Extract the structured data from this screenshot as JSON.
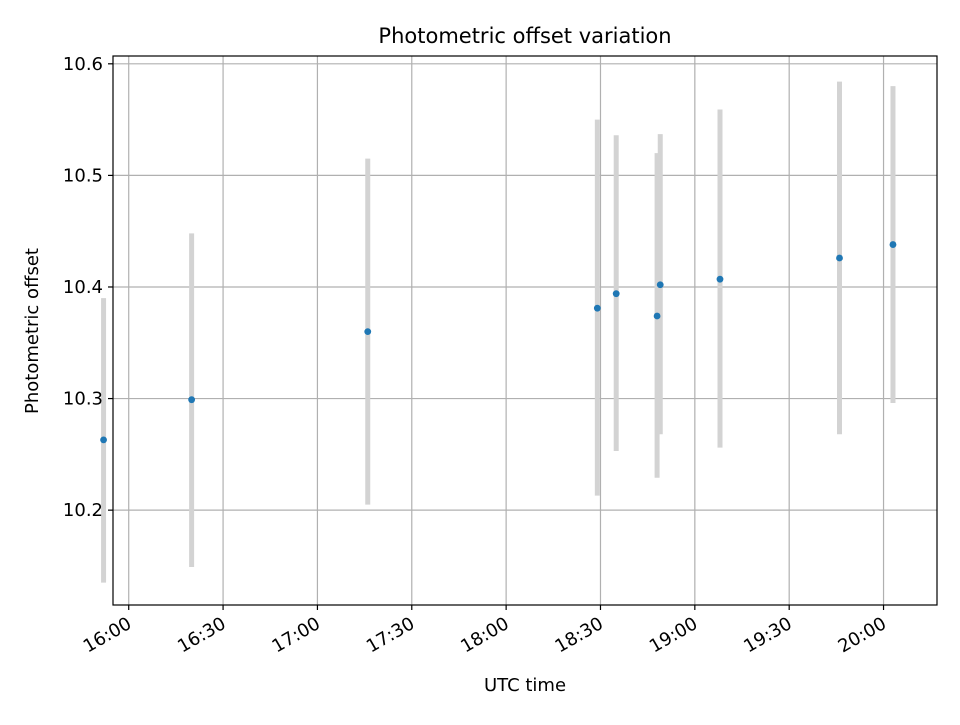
{
  "chart_data": {
    "type": "scatter",
    "title": "Photometric offset variation",
    "xlabel": "UTC time",
    "ylabel": "Photometric offset",
    "x_axis_type": "time",
    "xlim": [
      "15:55",
      "20:17"
    ],
    "ylim": [
      10.115,
      10.607
    ],
    "x_ticks": [
      "16:00",
      "16:30",
      "17:00",
      "17:30",
      "18:00",
      "18:30",
      "19:00",
      "19:30",
      "20:00"
    ],
    "y_ticks": [
      10.2,
      10.3,
      10.4,
      10.5,
      10.6
    ],
    "y_tick_labels": [
      "10.2",
      "10.3",
      "10.4",
      "10.5",
      "10.6"
    ],
    "grid": true,
    "legend": "none",
    "series": [
      {
        "marker": "circle",
        "color": "#1f77b4",
        "error_bar_color": "#d3d3d3",
        "points": [
          {
            "time": "15:52",
            "value": 10.263,
            "err_low": 10.135,
            "err_high": 10.39
          },
          {
            "time": "16:20",
            "value": 10.299,
            "err_low": 10.149,
            "err_high": 10.448
          },
          {
            "time": "17:16",
            "value": 10.36,
            "err_low": 10.205,
            "err_high": 10.515
          },
          {
            "time": "18:29",
            "value": 10.381,
            "err_low": 10.213,
            "err_high": 10.55
          },
          {
            "time": "18:35",
            "value": 10.394,
            "err_low": 10.253,
            "err_high": 10.536
          },
          {
            "time": "18:48",
            "value": 10.374,
            "err_low": 10.229,
            "err_high": 10.52
          },
          {
            "time": "18:49",
            "value": 10.402,
            "err_low": 10.268,
            "err_high": 10.537
          },
          {
            "time": "19:08",
            "value": 10.407,
            "err_low": 10.256,
            "err_high": 10.559
          },
          {
            "time": "19:46",
            "value": 10.426,
            "err_low": 10.268,
            "err_high": 10.584
          },
          {
            "time": "20:03",
            "value": 10.438,
            "err_low": 10.296,
            "err_high": 10.58
          }
        ]
      }
    ]
  }
}
